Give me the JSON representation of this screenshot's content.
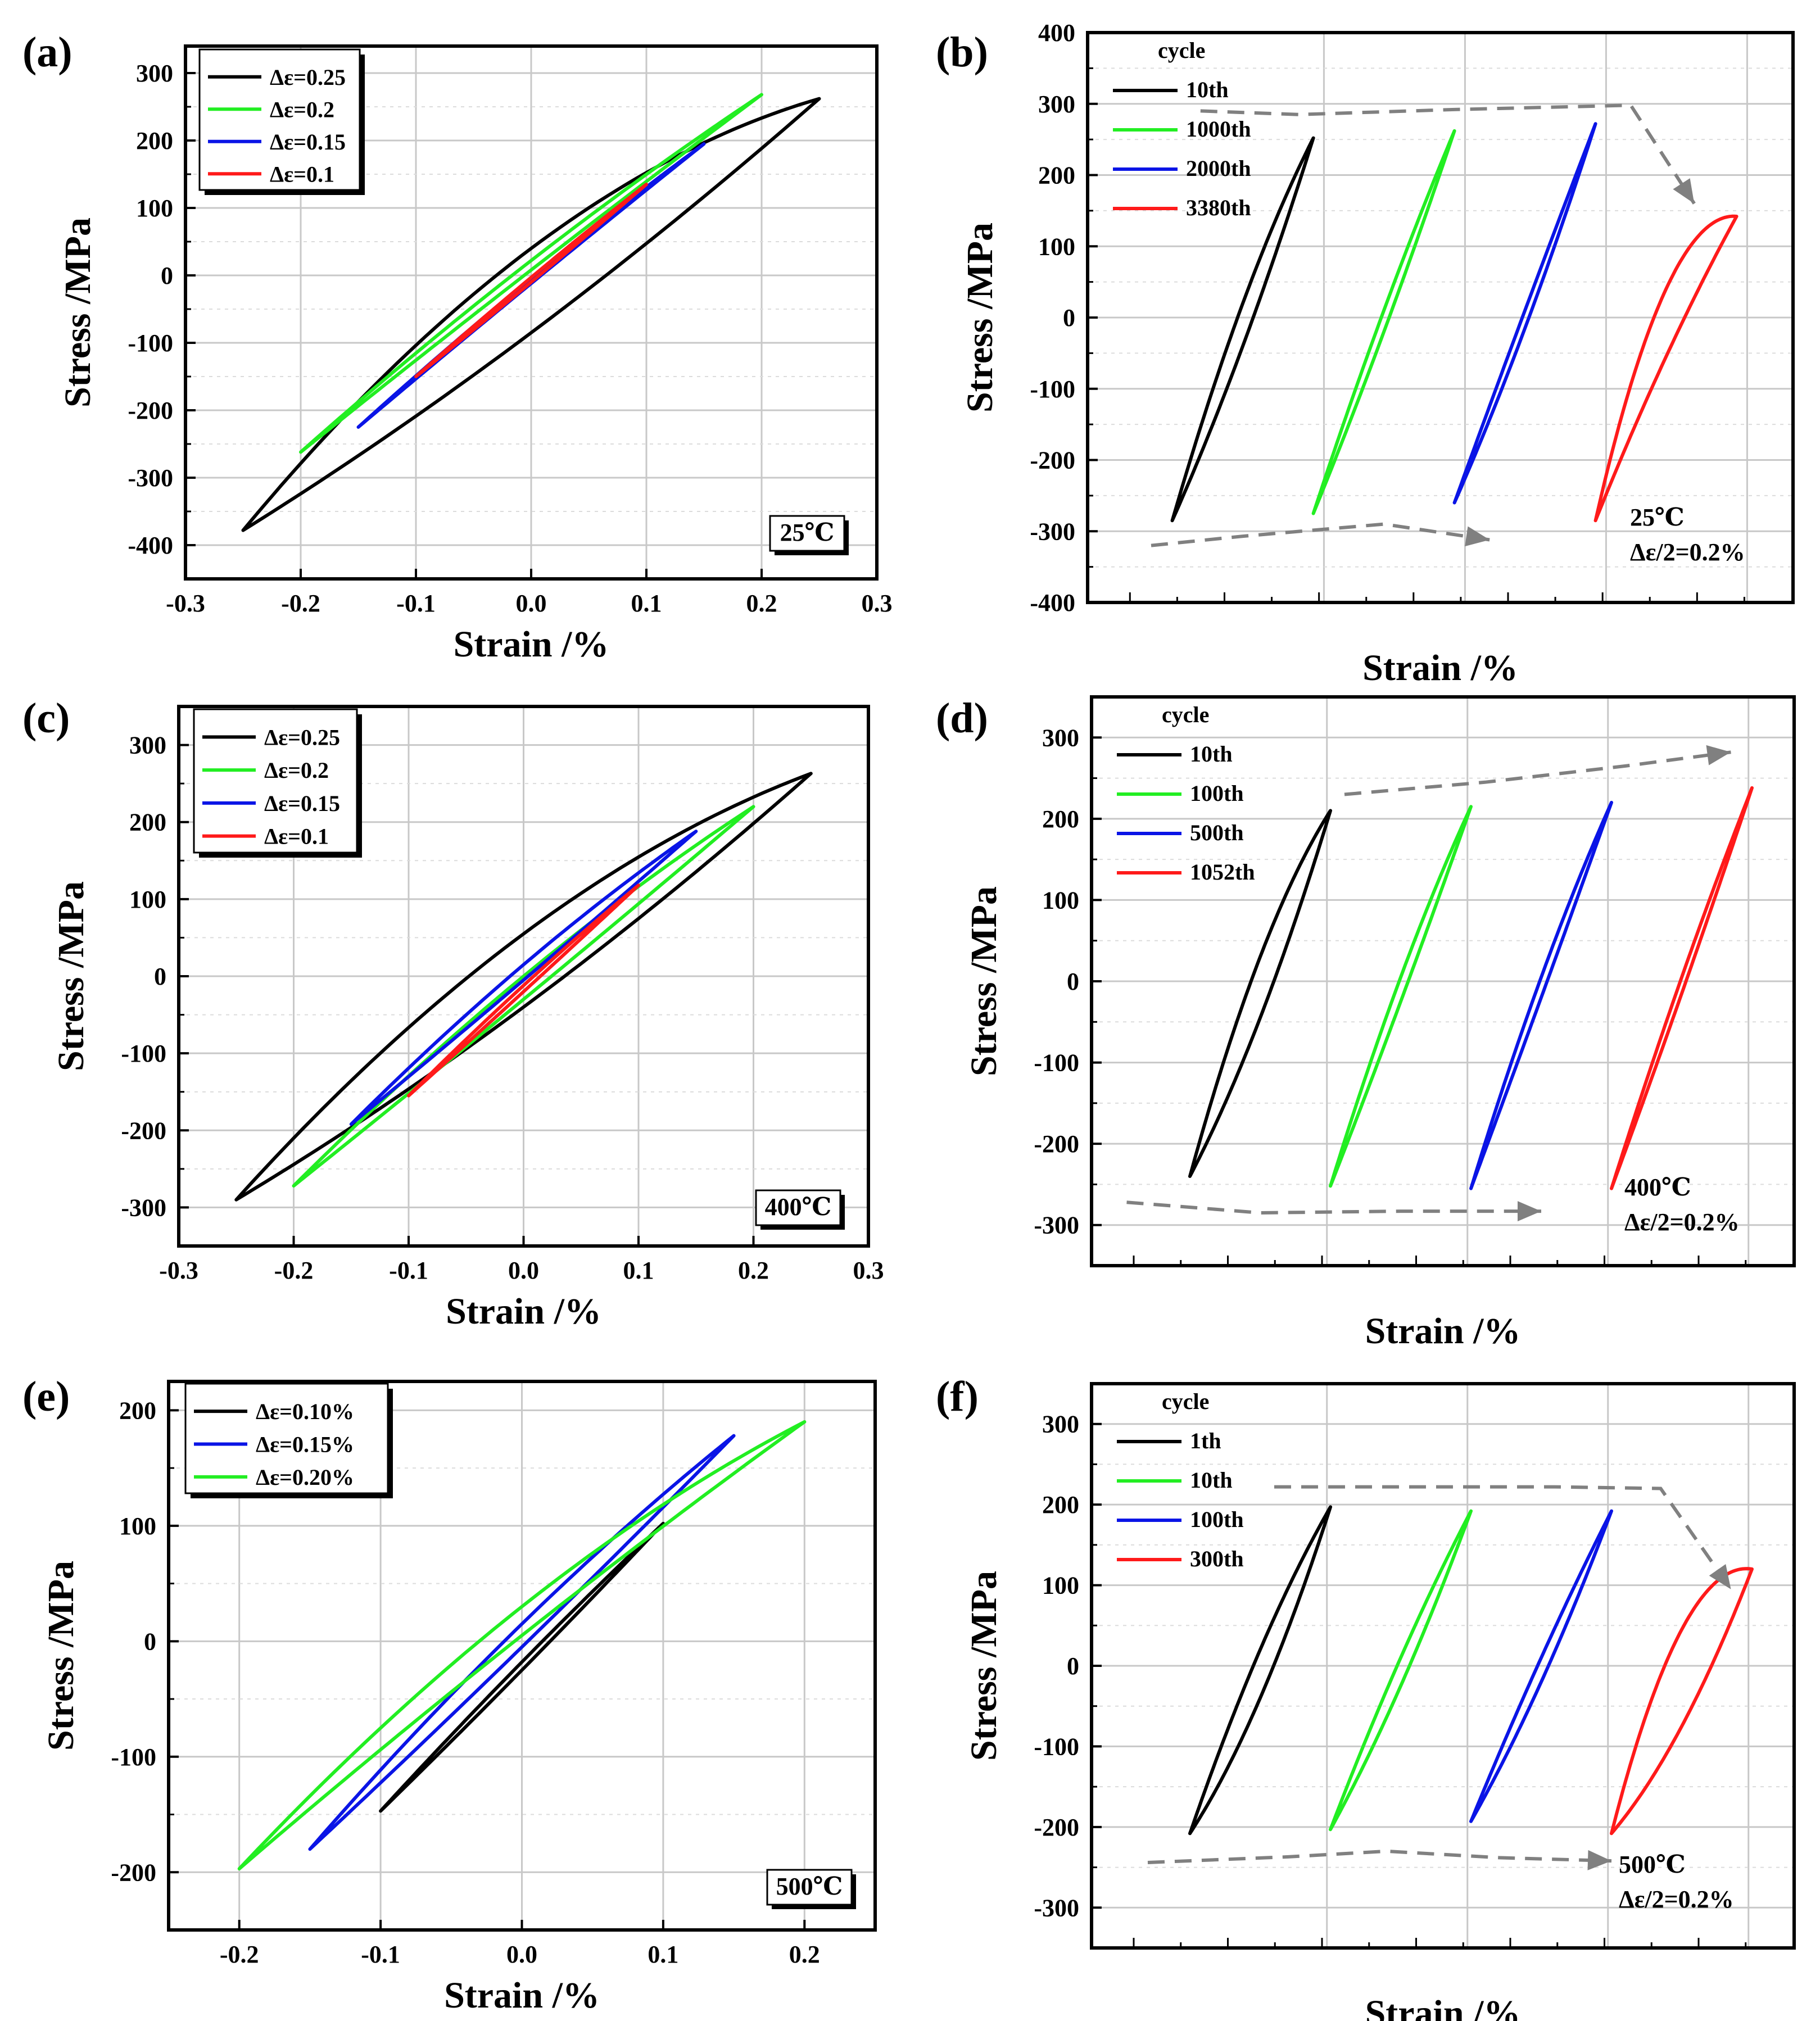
{
  "figure": {
    "colors": {
      "black": "#000000",
      "green": "#22ee22",
      "blue": "#0a14e6",
      "red": "#ff1a1a",
      "arrow": "#808080"
    }
  },
  "chart_data": [
    {
      "panel_label": "(a)",
      "type": "line",
      "xlabel": "Strain /%",
      "ylabel": "Stress /MPa",
      "xlim": [
        -0.3,
        0.3
      ],
      "ylim": [
        -450,
        340
      ],
      "xticks": [
        -0.3,
        -0.2,
        -0.1,
        0.0,
        0.1,
        0.2,
        0.3
      ],
      "xtick_labels": [
        "-0.3",
        "-0.2",
        "-0.1",
        "0.0",
        "0.1",
        "0.2",
        "0.3"
      ],
      "yticks": [
        -400,
        -300,
        -200,
        -100,
        0,
        100,
        200,
        300
      ],
      "ytick_labels": [
        "-400",
        "-300",
        "-200",
        "-100",
        "0",
        "100",
        "200",
        "300"
      ],
      "legend_title": "",
      "annotation": [
        "25℃"
      ],
      "annotation_boxed": true,
      "series": [
        {
          "name": "Δε=0.25",
          "color": "black",
          "x_min": -0.25,
          "x_max": 0.25,
          "y_min": -378,
          "y_max": 262,
          "upper_at_zero": 40,
          "lower_at_zero": -85
        },
        {
          "name": "Δε=0.2",
          "color": "green",
          "x_min": -0.2,
          "x_max": 0.2,
          "y_min": -262,
          "y_max": 268,
          "upper_at_zero": 22,
          "lower_at_zero": 8
        },
        {
          "name": "Δε=0.15",
          "color": "blue",
          "x_min": -0.15,
          "x_max": 0.15,
          "y_min": -225,
          "y_max": 195,
          "upper_at_zero": -4,
          "lower_at_zero": -12
        },
        {
          "name": "Δε=0.1",
          "color": "red",
          "x_min": -0.1,
          "x_max": 0.1,
          "y_min": -150,
          "y_max": 135,
          "upper_at_zero": -3,
          "lower_at_zero": -10
        }
      ]
    },
    {
      "panel_label": "(b)",
      "type": "line",
      "xlabel": "Strain /%",
      "ylabel": "Stress /MPa",
      "xlim": [
        0,
        1
      ],
      "ylim": [
        -400,
        400
      ],
      "xticks": [],
      "xtick_labels": [],
      "yticks": [
        -400,
        -300,
        -200,
        -100,
        0,
        100,
        200,
        300,
        400
      ],
      "ytick_labels": [
        "-400",
        "-300",
        "-200",
        "-100",
        "0",
        "100",
        "200",
        "300",
        "400"
      ],
      "legend_title": "cycle",
      "annotation": [
        "25℃",
        "Δε/2=0.2%"
      ],
      "annotation_boxed": false,
      "series": [
        {
          "name": "10th",
          "color": "black",
          "x_min": 0.12,
          "x_max": 0.32,
          "y_min": -285,
          "y_max": 252,
          "upper_at_zero": 20,
          "lower_at_zero": -40
        },
        {
          "name": "1000th",
          "color": "green",
          "x_min": 0.32,
          "x_max": 0.52,
          "y_min": -275,
          "y_max": 262,
          "upper_at_zero": 10,
          "lower_at_zero": -20
        },
        {
          "name": "2000th",
          "color": "blue",
          "x_min": 0.52,
          "x_max": 0.72,
          "y_min": -260,
          "y_max": 272,
          "upper_at_zero": 10,
          "lower_at_zero": -15
        },
        {
          "name": "3380th",
          "color": "red",
          "x_min": 0.72,
          "x_max": 0.92,
          "y_min": -285,
          "y_max": 142,
          "upper_at_zero": 40,
          "lower_at_zero": -55
        }
      ]
    },
    {
      "panel_label": "(c)",
      "type": "line",
      "xlabel": "Strain /%",
      "ylabel": "Stress /MPa",
      "xlim": [
        -0.3,
        0.3
      ],
      "ylim": [
        -350,
        350
      ],
      "xticks": [
        -0.3,
        -0.2,
        -0.1,
        0.0,
        0.1,
        0.2,
        0.3
      ],
      "xtick_labels": [
        "-0.3",
        "-0.2",
        "-0.1",
        "0.0",
        "0.1",
        "0.2",
        "0.3"
      ],
      "yticks": [
        -300,
        -200,
        -100,
        0,
        100,
        200,
        300
      ],
      "ytick_labels": [
        "-300",
        "-200",
        "-100",
        "0",
        "100",
        "200",
        "300"
      ],
      "legend_title": "",
      "annotation": [
        "400℃"
      ],
      "annotation_boxed": true,
      "series": [
        {
          "name": "Δε=0.25",
          "color": "black",
          "x_min": -0.25,
          "x_max": 0.25,
          "y_min": -290,
          "y_max": 263,
          "upper_at_zero": 55,
          "lower_at_zero": -40
        },
        {
          "name": "Δε=0.2",
          "color": "green",
          "x_min": -0.2,
          "x_max": 0.2,
          "y_min": -272,
          "y_max": 220,
          "upper_at_zero": 0,
          "lower_at_zero": -30
        },
        {
          "name": "Δε=0.15",
          "color": "blue",
          "x_min": -0.15,
          "x_max": 0.15,
          "y_min": -192,
          "y_max": 188,
          "upper_at_zero": 15,
          "lower_at_zero": -5
        },
        {
          "name": "Δε=0.1",
          "color": "red",
          "x_min": -0.1,
          "x_max": 0.1,
          "y_min": -155,
          "y_max": 118,
          "upper_at_zero": -12,
          "lower_at_zero": -20
        }
      ]
    },
    {
      "panel_label": "(d)",
      "type": "line",
      "xlabel": "Strain /%",
      "ylabel": "Stress /MPa",
      "xlim": [
        0,
        1
      ],
      "ylim": [
        -350,
        350
      ],
      "xticks": [],
      "xtick_labels": [],
      "yticks": [
        -300,
        -200,
        -100,
        0,
        100,
        200,
        300
      ],
      "ytick_labels": [
        "-300",
        "-200",
        "-100",
        "0",
        "100",
        "200",
        "300"
      ],
      "legend_title": "cycle",
      "annotation": [
        "400℃",
        "Δε/2=0.2%"
      ],
      "annotation_boxed": false,
      "series": [
        {
          "name": "10th",
          "color": "black",
          "x_min": 0.14,
          "x_max": 0.34,
          "y_min": -240,
          "y_max": 210,
          "upper_at_zero": 30,
          "lower_at_zero": -45
        },
        {
          "name": "100th",
          "color": "green",
          "x_min": 0.34,
          "x_max": 0.54,
          "y_min": -252,
          "y_max": 215,
          "upper_at_zero": 5,
          "lower_at_zero": -25
        },
        {
          "name": "500th",
          "color": "blue",
          "x_min": 0.54,
          "x_max": 0.74,
          "y_min": -255,
          "y_max": 220,
          "upper_at_zero": 5,
          "lower_at_zero": -20
        },
        {
          "name": "1052th",
          "color": "red",
          "x_min": 0.74,
          "x_max": 0.94,
          "y_min": -255,
          "y_max": 238,
          "upper_at_zero": 5,
          "lower_at_zero": -15
        }
      ]
    },
    {
      "panel_label": "(e)",
      "type": "line",
      "xlabel": "Strain /%",
      "ylabel": "Stress /MPa",
      "xlim": [
        -0.25,
        0.25
      ],
      "ylim": [
        -250,
        225
      ],
      "xticks": [
        -0.2,
        -0.1,
        0.0,
        0.1,
        0.2
      ],
      "xtick_labels": [
        "-0.2",
        "-0.1",
        "0.0",
        "0.1",
        "0.2"
      ],
      "yticks": [
        -200,
        -100,
        0,
        100,
        200
      ],
      "ytick_labels": [
        "-200",
        "-100",
        "0",
        "100",
        "200"
      ],
      "legend_title": "",
      "annotation": [
        "500℃"
      ],
      "annotation_boxed": true,
      "series": [
        {
          "name": "Δε=0.10%",
          "color": "black",
          "x_min": -0.1,
          "x_max": 0.1,
          "y_min": -147,
          "y_max": 102,
          "upper_at_zero": -18,
          "lower_at_zero": -25
        },
        {
          "name": "Δε=0.15%",
          "color": "blue",
          "x_min": -0.15,
          "x_max": 0.15,
          "y_min": -180,
          "y_max": 178,
          "upper_at_zero": 15,
          "lower_at_zero": -5
        },
        {
          "name": "Δε=0.20%",
          "color": "green",
          "x_min": -0.2,
          "x_max": 0.2,
          "y_min": -197,
          "y_max": 190,
          "upper_at_zero": 30,
          "lower_at_zero": 5
        }
      ]
    },
    {
      "panel_label": "(f)",
      "type": "line",
      "xlabel": "Strain /%",
      "ylabel": "Stress /MPa",
      "xlim": [
        0,
        1
      ],
      "ylim": [
        -350,
        350
      ],
      "xticks": [],
      "xtick_labels": [],
      "yticks": [
        -300,
        -200,
        -100,
        0,
        100,
        200,
        300
      ],
      "ytick_labels": [
        "-300",
        "-200",
        "-100",
        "0",
        "100",
        "200",
        "300"
      ],
      "legend_title": "cycle",
      "annotation": [
        "500℃",
        "Δε/2=0.2%"
      ],
      "annotation_boxed": false,
      "series": [
        {
          "name": "1th",
          "color": "black",
          "x_min": 0.14,
          "x_max": 0.34,
          "y_min": -208,
          "y_max": 197,
          "upper_at_zero": 20,
          "lower_at_zero": -40
        },
        {
          "name": "10th",
          "color": "green",
          "x_min": 0.34,
          "x_max": 0.54,
          "y_min": -203,
          "y_max": 192,
          "upper_at_zero": 10,
          "lower_at_zero": -25
        },
        {
          "name": "100th",
          "color": "blue",
          "x_min": 0.54,
          "x_max": 0.74,
          "y_min": -193,
          "y_max": 192,
          "upper_at_zero": 10,
          "lower_at_zero": -20
        },
        {
          "name": "300th",
          "color": "red",
          "x_min": 0.74,
          "x_max": 0.94,
          "y_min": -208,
          "y_max": 120,
          "upper_at_zero": 45,
          "lower_at_zero": -75
        }
      ]
    }
  ]
}
